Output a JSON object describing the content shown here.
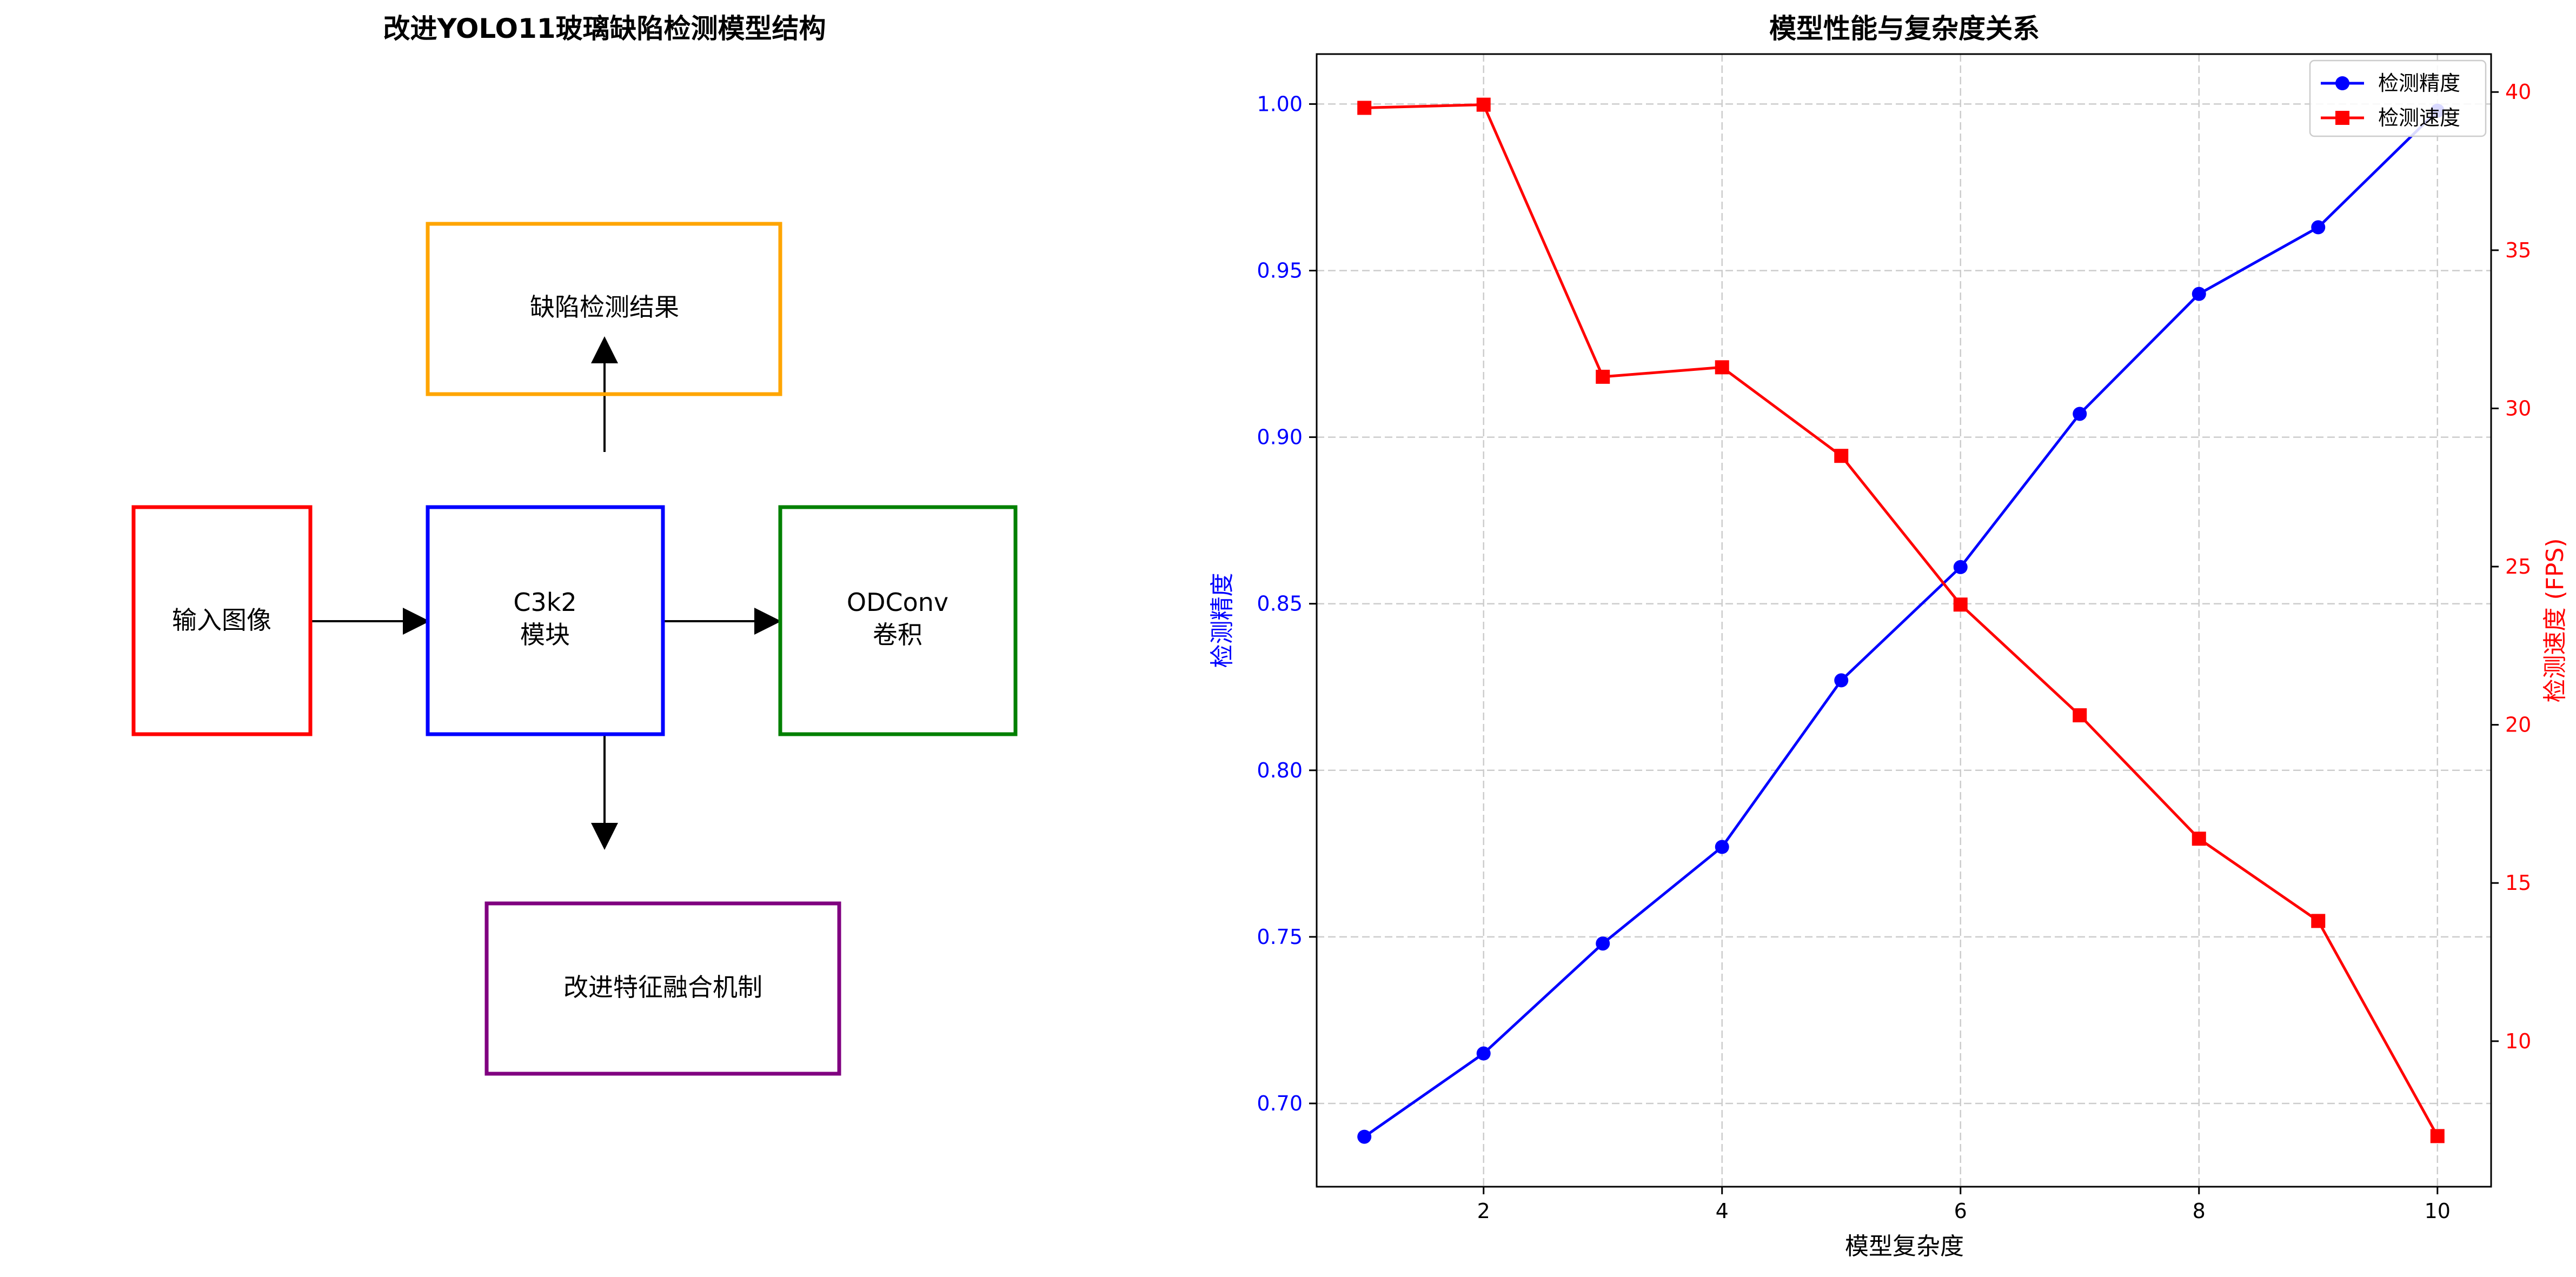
{
  "diagram": {
    "title": "改进YOLO11玻璃缺陷检测模型结构",
    "boxes": [
      {
        "id": "input",
        "lines": [
          "输入图像"
        ],
        "color": "#ff0000"
      },
      {
        "id": "c3k2",
        "lines": [
          "C3k2",
          "模块"
        ],
        "color": "#0000ff"
      },
      {
        "id": "odconv",
        "lines": [
          "ODConv",
          "卷积"
        ],
        "color": "#008000"
      },
      {
        "id": "result",
        "lines": [
          "缺陷检测结果"
        ],
        "color": "#ffa500"
      },
      {
        "id": "fusion",
        "lines": [
          "改进特征融合机制"
        ],
        "color": "#800080"
      }
    ]
  },
  "chart_data": {
    "type": "line",
    "title": "模型性能与复杂度关系",
    "xlabel": "模型复杂度",
    "x": [
      1,
      2,
      3,
      4,
      5,
      6,
      7,
      8,
      9,
      10
    ],
    "xticks": [
      2,
      4,
      6,
      8,
      10
    ],
    "xlim": [
      0.6,
      10.45
    ],
    "grid": true,
    "legend_position": "top-right",
    "left_axis": {
      "label": "检测精度",
      "color": "#0000ff",
      "ylim": [
        0.675,
        1.015
      ],
      "ticks": [
        "0.70",
        "0.75",
        "0.80",
        "0.85",
        "0.90",
        "0.95",
        "1.00"
      ]
    },
    "right_axis": {
      "label": "检测速度 (FPS)",
      "color": "#ff0000",
      "ylim": [
        5.4,
        41.2
      ],
      "ticks": [
        "10",
        "15",
        "20",
        "25",
        "30",
        "35",
        "40"
      ]
    },
    "series": [
      {
        "name": "检测精度",
        "axis": "left",
        "color": "#0000ff",
        "marker": "circle",
        "values": [
          0.69,
          0.715,
          0.748,
          0.777,
          0.827,
          0.861,
          0.907,
          0.943,
          0.963,
          0.998
        ]
      },
      {
        "name": "检测速度",
        "axis": "right",
        "color": "#ff0000",
        "marker": "square",
        "values": [
          39.5,
          39.6,
          31.0,
          31.3,
          28.5,
          23.8,
          20.3,
          16.4,
          13.8,
          7.0
        ]
      }
    ]
  }
}
